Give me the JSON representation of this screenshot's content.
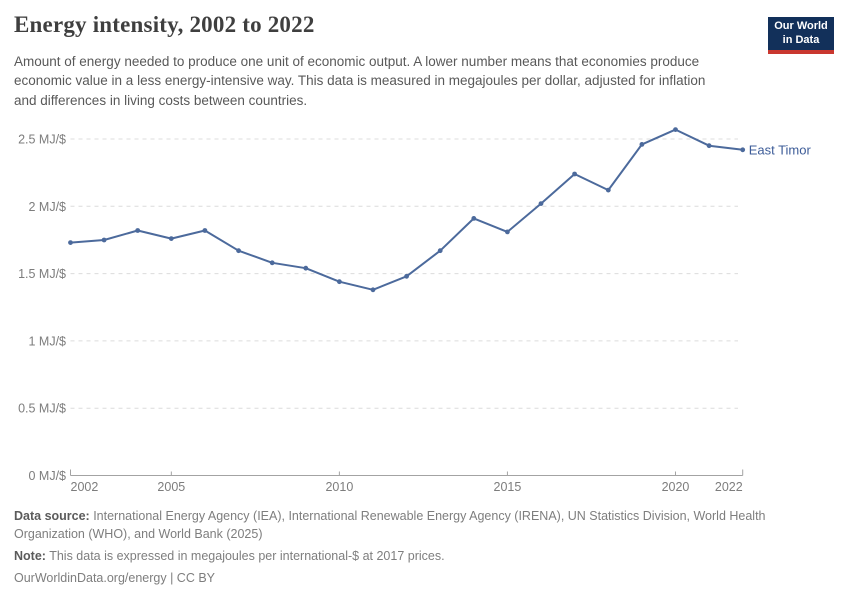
{
  "header": {
    "title": "Energy intensity, 2002 to 2022",
    "subtitle": "Amount of energy needed to produce one unit of economic output. A lower number means that economies produce economic value in a less energy-intensive way. This data is measured in megajoules per dollar, adjusted for inflation and differences in living costs between countries.",
    "logo": {
      "line1": "Our World",
      "line2": "in Data"
    }
  },
  "chart_data": {
    "type": "line",
    "title": "Energy intensity, 2002 to 2022",
    "unit": "MJ/$",
    "x": [
      2002,
      2003,
      2004,
      2005,
      2006,
      2007,
      2008,
      2009,
      2010,
      2011,
      2012,
      2013,
      2014,
      2015,
      2016,
      2017,
      2018,
      2019,
      2020,
      2021,
      2022
    ],
    "series": [
      {
        "name": "East Timor",
        "color": "#4C6A9C",
        "values": [
          1.73,
          1.75,
          1.82,
          1.76,
          1.82,
          1.67,
          1.58,
          1.54,
          1.44,
          1.38,
          1.48,
          1.67,
          1.91,
          1.81,
          2.02,
          2.24,
          2.12,
          2.46,
          2.57,
          2.45,
          2.42
        ]
      }
    ],
    "xlim": [
      2002,
      2022
    ],
    "ylim": [
      0,
      2.5
    ],
    "x_ticks": [
      2002,
      2005,
      2010,
      2015,
      2020,
      2022
    ],
    "x_tick_labels": [
      "2002",
      "2005",
      "2010",
      "2015",
      "2020",
      "2022"
    ],
    "y_ticks": [
      0,
      0.5,
      1,
      1.5,
      2,
      2.5
    ],
    "y_tick_labels": [
      "0 MJ/$",
      "0.5 MJ/$",
      "1 MJ/$",
      "1.5 MJ/$",
      "2 MJ/$",
      "2.5 MJ/$"
    ],
    "grid": "horizontal-dashed",
    "legend_position": "end-of-line-label"
  },
  "footer": {
    "data_source_label": "Data source:",
    "data_source_text": " International Energy Agency (IEA), International Renewable Energy Agency (IRENA), UN Statistics Division, World Health Organization (WHO), and World Bank (2025)",
    "note_label": "Note:",
    "note_text": " This data is expressed in megajoules per international-$ at 2017 prices.",
    "credit": "OurWorldinData.org/energy | CC BY"
  },
  "colors": {
    "line": "#4C6A9C",
    "entity_label": "#3d5c98",
    "grid": "#dcdcdc",
    "axis": "#a3a3a3",
    "tick_text": "#7d7d7d",
    "logo_bg": "#12305a",
    "logo_bar": "#c9372f"
  }
}
